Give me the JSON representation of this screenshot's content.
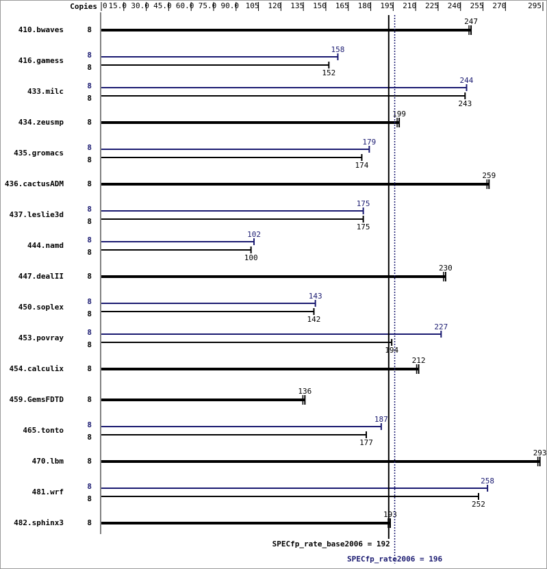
{
  "chart_data": {
    "type": "spec_bar",
    "copies_label": "Copies",
    "xlim": [
      0,
      295
    ],
    "xticks": [
      0,
      {
        "value": 15,
        "label": "15.0"
      },
      {
        "value": 30,
        "label": "30.0"
      },
      {
        "value": 45,
        "label": "45.0"
      },
      {
        "value": 60,
        "label": "60.0"
      },
      {
        "value": 75,
        "label": "75.0"
      },
      {
        "value": 90,
        "label": "90.0"
      },
      105,
      120,
      135,
      150,
      165,
      180,
      195,
      210,
      225,
      240,
      255,
      270,
      295
    ],
    "categories": [
      "410.bwaves",
      "416.gamess",
      "433.milc",
      "434.zeusmp",
      "435.gromacs",
      "436.cactusADM",
      "437.leslie3d",
      "444.namd",
      "447.dealII",
      "450.soplex",
      "453.povray",
      "454.calculix",
      "459.GemsFDTD",
      "465.tonto",
      "470.lbm",
      "481.wrf",
      "482.sphinx3"
    ],
    "series": [
      {
        "color": "#000000",
        "values": [
          247,
          152,
          243,
          199,
          174,
          259,
          175,
          100,
          230,
          142,
          194,
          212,
          136,
          177,
          293,
          252,
          193
        ],
        "copies": [
          8,
          8,
          8,
          8,
          8,
          8,
          8,
          8,
          8,
          8,
          8,
          8,
          8,
          8,
          8,
          8,
          8
        ]
      },
      {
        "color": "#191970",
        "values": [
          null,
          158,
          244,
          null,
          179,
          null,
          175,
          102,
          null,
          143,
          227,
          null,
          null,
          187,
          null,
          258,
          null
        ],
        "copies": [
          null,
          8,
          8,
          null,
          8,
          null,
          8,
          8,
          null,
          8,
          8,
          null,
          null,
          8,
          null,
          8,
          null
        ]
      }
    ],
    "reference_lines": [
      {
        "label": "SPECfp_rate_base2006 = 192",
        "value": 192,
        "color": "#000000",
        "style": "solid"
      },
      {
        "label": "SPECfp_rate2006 = 196",
        "value": 196,
        "color": "#191970",
        "style": "dotted"
      }
    ]
  }
}
